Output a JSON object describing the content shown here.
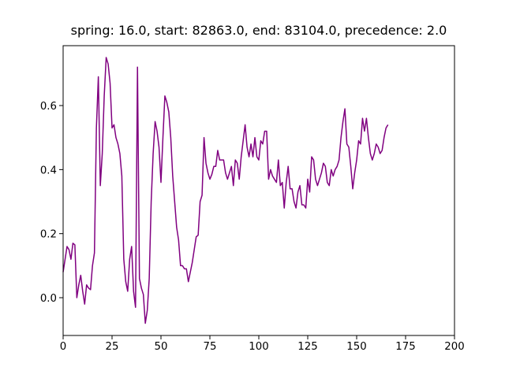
{
  "chart_data": {
    "type": "line",
    "title": "spring: 16.0, start: 82863.0, end: 83104.0, precedence: 2.0",
    "color": "#800080",
    "xlim": [
      0,
      200
    ],
    "xticks": [
      0,
      25,
      50,
      75,
      100,
      125,
      150,
      175,
      200
    ],
    "ylim": [
      -0.118,
      0.787
    ],
    "yticks": [
      {
        "value": 0,
        "label": "0.0"
      },
      0.2,
      0.4,
      0.6
    ],
    "x": [
      0,
      1,
      2,
      3,
      4,
      5,
      6,
      7,
      8,
      9,
      10,
      11,
      12,
      13,
      14,
      15,
      16,
      17,
      18,
      19,
      20,
      21,
      22,
      23,
      24,
      25,
      26,
      27,
      28,
      29,
      30,
      31,
      32,
      33,
      34,
      35,
      36,
      37,
      38,
      39,
      40,
      41,
      42,
      43,
      44,
      45,
      46,
      47,
      48,
      49,
      50,
      51,
      52,
      53,
      54,
      55,
      56,
      57,
      58,
      59,
      60,
      61,
      62,
      63,
      64,
      65,
      66,
      67,
      68,
      69,
      70,
      71,
      72,
      73,
      74,
      75,
      76,
      77,
      78,
      79,
      80,
      81,
      82,
      83,
      84,
      85,
      86,
      87,
      88,
      89,
      90,
      91,
      92,
      93,
      94,
      95,
      96,
      97,
      98,
      99,
      100,
      101,
      102,
      103,
      104,
      105,
      106,
      107,
      108,
      109,
      110,
      111,
      112,
      113,
      114,
      115,
      116,
      117,
      118,
      119,
      120,
      121,
      122,
      123,
      124,
      125,
      126,
      127,
      128,
      129,
      130,
      131,
      132,
      133,
      134,
      135,
      136,
      137,
      138,
      139,
      140,
      141,
      142,
      143,
      144,
      145,
      146,
      147,
      148,
      149,
      150,
      151,
      152,
      153,
      154,
      155,
      156,
      157,
      158,
      159,
      160,
      161,
      162,
      163,
      164,
      165,
      166
    ],
    "values": [
      0.08,
      0.12,
      0.16,
      0.15,
      0.12,
      0.17,
      0.165,
      0.0,
      0.04,
      0.07,
      0.02,
      -0.02,
      0.04,
      0.03,
      0.025,
      0.1,
      0.14,
      0.53,
      0.69,
      0.35,
      0.45,
      0.63,
      0.75,
      0.73,
      0.67,
      0.53,
      0.54,
      0.5,
      0.48,
      0.45,
      0.38,
      0.12,
      0.05,
      0.02,
      0.12,
      0.16,
      0.02,
      -0.03,
      0.72,
      0.06,
      0.03,
      0.01,
      -0.08,
      -0.04,
      0.06,
      0.3,
      0.45,
      0.55,
      0.52,
      0.47,
      0.36,
      0.5,
      0.63,
      0.61,
      0.58,
      0.5,
      0.38,
      0.3,
      0.22,
      0.18,
      0.1,
      0.1,
      0.09,
      0.09,
      0.05,
      0.08,
      0.11,
      0.15,
      0.19,
      0.195,
      0.3,
      0.32,
      0.5,
      0.42,
      0.39,
      0.37,
      0.385,
      0.41,
      0.41,
      0.46,
      0.43,
      0.43,
      0.43,
      0.39,
      0.37,
      0.39,
      0.41,
      0.35,
      0.43,
      0.42,
      0.37,
      0.44,
      0.49,
      0.54,
      0.47,
      0.44,
      0.48,
      0.44,
      0.5,
      0.44,
      0.43,
      0.49,
      0.48,
      0.52,
      0.52,
      0.37,
      0.4,
      0.38,
      0.37,
      0.36,
      0.43,
      0.35,
      0.36,
      0.28,
      0.36,
      0.41,
      0.34,
      0.34,
      0.3,
      0.28,
      0.33,
      0.35,
      0.29,
      0.29,
      0.28,
      0.37,
      0.33,
      0.44,
      0.43,
      0.37,
      0.35,
      0.37,
      0.39,
      0.42,
      0.41,
      0.36,
      0.35,
      0.4,
      0.38,
      0.4,
      0.41,
      0.43,
      0.5,
      0.55,
      0.59,
      0.48,
      0.47,
      0.41,
      0.34,
      0.39,
      0.43,
      0.49,
      0.48,
      0.56,
      0.52,
      0.56,
      0.5,
      0.45,
      0.43,
      0.45,
      0.48,
      0.47,
      0.45,
      0.46,
      0.5,
      0.53,
      0.54
    ]
  }
}
